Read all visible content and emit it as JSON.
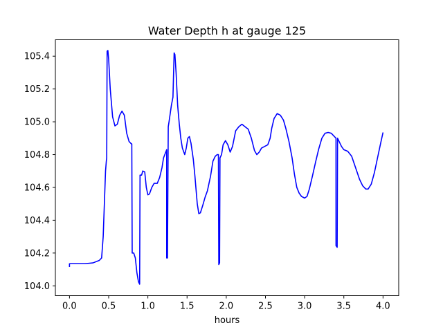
{
  "chart_data": {
    "type": "line",
    "title": "Water Depth h at gauge 125",
    "xlabel": "hours",
    "ylabel": "",
    "xlim": [
      -0.18,
      4.2
    ],
    "ylim": [
      103.94,
      105.5
    ],
    "grid": false,
    "line_color": "#0000ff",
    "xticks": [
      0.0,
      0.5,
      1.0,
      1.5,
      2.0,
      2.5,
      3.0,
      3.5,
      4.0
    ],
    "xtick_labels": [
      "0.0",
      "0.5",
      "1.0",
      "1.5",
      "2.0",
      "2.5",
      "3.0",
      "3.5",
      "4.0"
    ],
    "yticks": [
      104.0,
      104.2,
      104.4,
      104.6,
      104.8,
      105.0,
      105.2,
      105.4
    ],
    "ytick_labels": [
      "104.0",
      "104.2",
      "104.4",
      "104.6",
      "104.8",
      "105.0",
      "105.2",
      "105.4"
    ],
    "series": [
      {
        "points": [
          [
            0.0,
            104.115
          ],
          [
            0.0,
            104.135
          ],
          [
            0.05,
            104.135
          ],
          [
            0.2,
            104.135
          ],
          [
            0.3,
            104.14
          ],
          [
            0.38,
            104.155
          ],
          [
            0.41,
            104.17
          ],
          [
            0.43,
            104.3
          ],
          [
            0.445,
            104.5
          ],
          [
            0.46,
            104.7
          ],
          [
            0.47,
            104.76
          ],
          [
            0.475,
            104.78
          ],
          [
            0.48,
            105.43
          ],
          [
            0.49,
            105.435
          ],
          [
            0.5,
            105.38
          ],
          [
            0.52,
            105.2
          ],
          [
            0.55,
            105.03
          ],
          [
            0.58,
            104.975
          ],
          [
            0.61,
            104.985
          ],
          [
            0.64,
            105.04
          ],
          [
            0.67,
            105.065
          ],
          [
            0.7,
            105.04
          ],
          [
            0.73,
            104.93
          ],
          [
            0.76,
            104.88
          ],
          [
            0.79,
            104.865
          ],
          [
            0.795,
            104.865
          ],
          [
            0.8,
            104.2
          ],
          [
            0.82,
            104.2
          ],
          [
            0.84,
            104.17
          ],
          [
            0.86,
            104.08
          ],
          [
            0.88,
            104.025
          ],
          [
            0.895,
            104.01
          ],
          [
            0.9,
            104.675
          ],
          [
            0.92,
            104.675
          ],
          [
            0.935,
            104.7
          ],
          [
            0.96,
            104.695
          ],
          [
            0.98,
            104.6
          ],
          [
            1.0,
            104.555
          ],
          [
            1.02,
            104.56
          ],
          [
            1.05,
            104.6
          ],
          [
            1.08,
            104.625
          ],
          [
            1.12,
            104.625
          ],
          [
            1.15,
            104.66
          ],
          [
            1.18,
            104.72
          ],
          [
            1.2,
            104.78
          ],
          [
            1.24,
            104.83
          ],
          [
            1.24,
            104.17
          ],
          [
            1.25,
            104.17
          ],
          [
            1.26,
            104.97
          ],
          [
            1.27,
            105.0
          ],
          [
            1.3,
            105.1
          ],
          [
            1.32,
            105.15
          ],
          [
            1.335,
            105.42
          ],
          [
            1.345,
            105.41
          ],
          [
            1.36,
            105.3
          ],
          [
            1.38,
            105.1
          ],
          [
            1.4,
            104.99
          ],
          [
            1.42,
            104.9
          ],
          [
            1.44,
            104.84
          ],
          [
            1.47,
            104.8
          ],
          [
            1.49,
            104.84
          ],
          [
            1.51,
            104.9
          ],
          [
            1.53,
            104.91
          ],
          [
            1.55,
            104.87
          ],
          [
            1.58,
            104.77
          ],
          [
            1.6,
            104.67
          ],
          [
            1.63,
            104.5
          ],
          [
            1.65,
            104.44
          ],
          [
            1.67,
            104.445
          ],
          [
            1.7,
            104.49
          ],
          [
            1.73,
            104.54
          ],
          [
            1.76,
            104.58
          ],
          [
            1.8,
            104.67
          ],
          [
            1.83,
            104.76
          ],
          [
            1.86,
            104.79
          ],
          [
            1.885,
            104.8
          ],
          [
            1.9,
            104.8
          ],
          [
            1.905,
            104.13
          ],
          [
            1.915,
            104.14
          ],
          [
            1.92,
            104.78
          ],
          [
            1.94,
            104.8
          ],
          [
            1.96,
            104.86
          ],
          [
            1.99,
            104.885
          ],
          [
            2.02,
            104.86
          ],
          [
            2.05,
            104.815
          ],
          [
            2.08,
            104.85
          ],
          [
            2.12,
            104.945
          ],
          [
            2.16,
            104.97
          ],
          [
            2.2,
            104.985
          ],
          [
            2.24,
            104.97
          ],
          [
            2.28,
            104.955
          ],
          [
            2.32,
            104.9
          ],
          [
            2.36,
            104.825
          ],
          [
            2.39,
            104.8
          ],
          [
            2.42,
            104.815
          ],
          [
            2.45,
            104.84
          ],
          [
            2.49,
            104.85
          ],
          [
            2.53,
            104.86
          ],
          [
            2.56,
            104.9
          ],
          [
            2.58,
            104.96
          ],
          [
            2.61,
            105.02
          ],
          [
            2.65,
            105.05
          ],
          [
            2.69,
            105.04
          ],
          [
            2.73,
            105.01
          ],
          [
            2.76,
            104.96
          ],
          [
            2.8,
            104.88
          ],
          [
            2.84,
            104.78
          ],
          [
            2.87,
            104.68
          ],
          [
            2.9,
            104.6
          ],
          [
            2.93,
            104.565
          ],
          [
            2.96,
            104.545
          ],
          [
            3.0,
            104.535
          ],
          [
            3.03,
            104.545
          ],
          [
            3.06,
            104.59
          ],
          [
            3.1,
            104.67
          ],
          [
            3.14,
            104.755
          ],
          [
            3.18,
            104.835
          ],
          [
            3.22,
            104.9
          ],
          [
            3.26,
            104.93
          ],
          [
            3.3,
            104.935
          ],
          [
            3.34,
            104.93
          ],
          [
            3.38,
            104.91
          ],
          [
            3.4,
            104.9
          ],
          [
            3.4,
            104.245
          ],
          [
            3.415,
            104.235
          ],
          [
            3.42,
            104.9
          ],
          [
            3.44,
            104.88
          ],
          [
            3.47,
            104.85
          ],
          [
            3.5,
            104.83
          ],
          [
            3.55,
            104.82
          ],
          [
            3.6,
            104.79
          ],
          [
            3.65,
            104.72
          ],
          [
            3.7,
            104.65
          ],
          [
            3.74,
            104.61
          ],
          [
            3.78,
            104.59
          ],
          [
            3.81,
            104.59
          ],
          [
            3.85,
            104.62
          ],
          [
            3.89,
            104.69
          ],
          [
            3.93,
            104.78
          ],
          [
            3.97,
            104.87
          ],
          [
            4.0,
            104.935
          ]
        ]
      }
    ]
  }
}
